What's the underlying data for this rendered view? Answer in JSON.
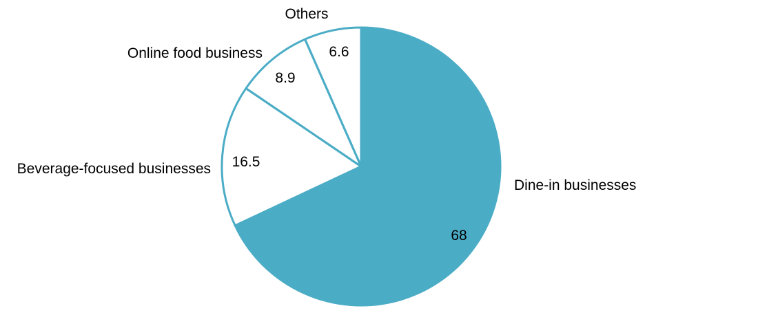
{
  "chart_data": {
    "type": "pie",
    "title": "",
    "slices": [
      {
        "label": "Dine-in businesses",
        "value": 68,
        "value_label": "68",
        "color": "#4BACC6"
      },
      {
        "label": "Beverage-focused businesses",
        "value": 16.5,
        "value_label": "16.5",
        "color": "#FFFFFF"
      },
      {
        "label": "Online food business",
        "value": 8.9,
        "value_label": "8.9",
        "color": "#FFFFFF"
      },
      {
        "label": "Others",
        "value": 6.6,
        "value_label": "6.6",
        "color": "#FFFFFF"
      }
    ],
    "start_angle": "12 o'clock",
    "direction": "clockwise",
    "stroke_color": "#4BACC6",
    "legend": "none"
  }
}
